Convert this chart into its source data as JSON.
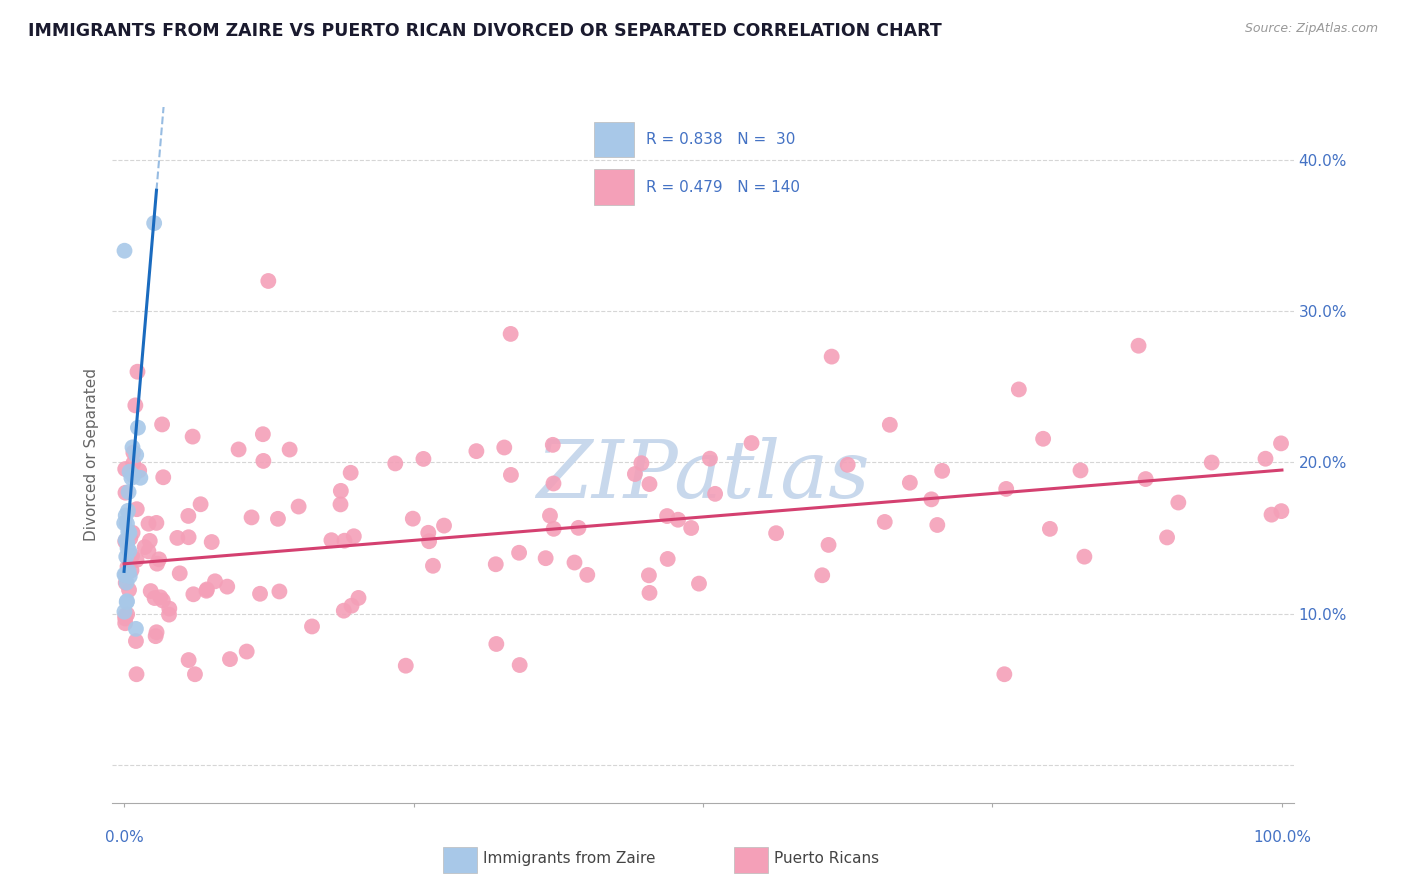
{
  "title": "IMMIGRANTS FROM ZAIRE VS PUERTO RICAN DIVORCED OR SEPARATED CORRELATION CHART",
  "source": "Source: ZipAtlas.com",
  "ylabel": "Divorced or Separated",
  "legend1_R": "0.838",
  "legend1_N": "30",
  "legend2_R": "0.479",
  "legend2_N": "140",
  "legend1_label": "Immigrants from Zaire",
  "legend2_label": "Puerto Ricans",
  "blue_color": "#a8c8e8",
  "pink_color": "#f4a0b8",
  "blue_line_color": "#1a6bbf",
  "pink_line_color": "#d44070",
  "label_color": "#4472c4",
  "watermark_color": "#c8d8ec",
  "title_color": "#1a1a2e",
  "axis_color": "#aaaaaa",
  "grid_color": "#cccccc",
  "ylim_min": -0.025,
  "ylim_max": 0.435,
  "xlim_min": -0.01,
  "xlim_max": 1.01,
  "ytick_positions": [
    0.0,
    0.1,
    0.2,
    0.3,
    0.4
  ],
  "ytick_labels_right": [
    "",
    "10.0%",
    "20.0%",
    "30.0%",
    "40.0%"
  ]
}
